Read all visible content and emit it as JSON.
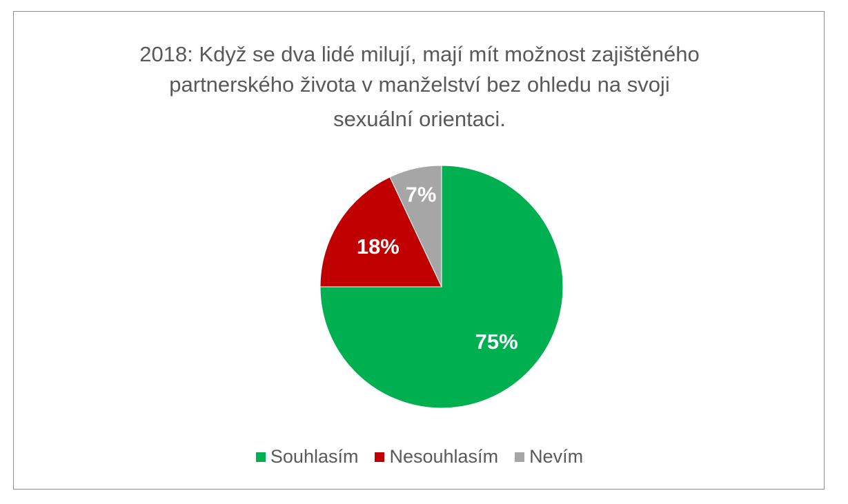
{
  "chart_data": {
    "type": "pie",
    "title_lines": [
      "2018: Když se dva lidé milují, mají mít možnost zajištěného",
      "partnerského života v manželství bez ohledu na svoji",
      "sexuální orientaci."
    ],
    "categories": [
      "Souhlasím",
      "Nesouhlasím",
      "Nevím"
    ],
    "values": [
      75,
      18,
      7
    ],
    "data_labels": [
      "75%",
      "18%",
      "7%"
    ],
    "colors": [
      "#00b050",
      "#c00000",
      "#a6a6a6"
    ],
    "legend_position": "bottom"
  }
}
